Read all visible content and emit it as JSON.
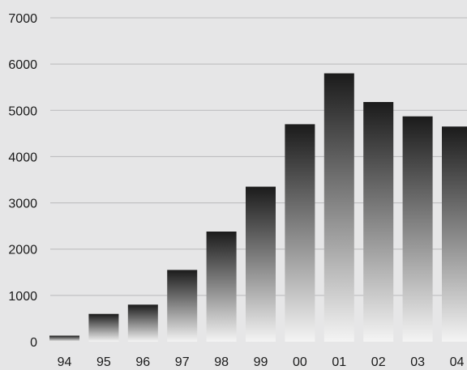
{
  "chart_data": {
    "type": "bar",
    "title": "",
    "xlabel": "",
    "ylabel": "",
    "categories": [
      "94",
      "95",
      "96",
      "97",
      "98",
      "99",
      "00",
      "01",
      "02",
      "03",
      "04"
    ],
    "values": [
      130,
      600,
      800,
      1550,
      2380,
      3350,
      4700,
      5800,
      5180,
      4870,
      4650
    ],
    "ylim": [
      0,
      7000
    ],
    "yticks": [
      "0",
      "1000",
      "2000",
      "3000",
      "4000",
      "5000",
      "6000",
      "7000"
    ],
    "grid": true,
    "legend": "none",
    "colors": {
      "background": "#e6e6e7",
      "grid": "#b9b9bb",
      "bar_top": "#1b1b1b",
      "bar_bottom": "#f4f4f4"
    }
  }
}
